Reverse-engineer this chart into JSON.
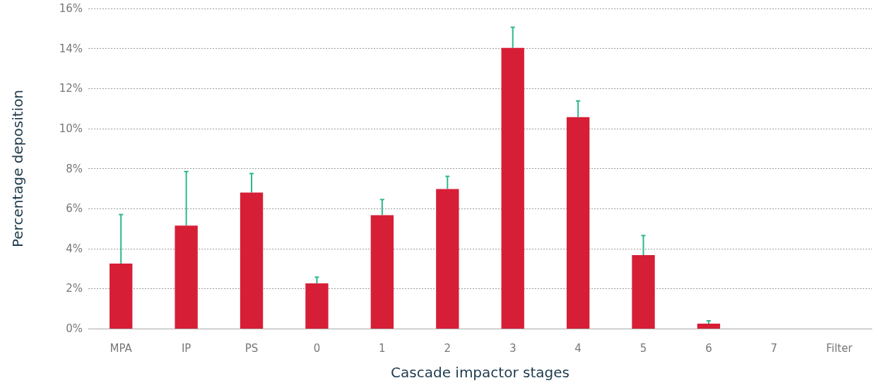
{
  "chart_data": {
    "type": "bar",
    "xlabel": "Cascade impactor stages",
    "ylabel": "Percentage deposition",
    "categories": [
      "MPA",
      "IP",
      "PS",
      "0",
      "1",
      "2",
      "3",
      "4",
      "5",
      "6",
      "7",
      "Filter"
    ],
    "values": [
      3.25,
      5.15,
      6.8,
      2.26,
      5.67,
      6.98,
      14.03,
      10.57,
      3.67,
      0.25,
      0,
      0
    ],
    "color": "#d61f36",
    "errors": [
      [
        3.25,
        5.7
      ],
      [
        5.15,
        7.85
      ],
      [
        6.8,
        7.75
      ],
      [
        2.26,
        2.57
      ],
      [
        5.67,
        6.45
      ],
      [
        6.98,
        7.61
      ],
      [
        14.03,
        15.06
      ],
      [
        10.57,
        11.38
      ],
      [
        3.67,
        4.65
      ],
      [
        0.25,
        0.39
      ],
      null,
      null
    ],
    "ylim": [
      0,
      16
    ],
    "yticks": [
      {
        "value": 0,
        "label": "0%"
      },
      {
        "value": 2,
        "label": "2%"
      },
      {
        "value": 4,
        "label": "4%"
      },
      {
        "value": 6,
        "label": "6%"
      },
      {
        "value": 8,
        "label": "8%"
      },
      {
        "value": 10,
        "label": "10%"
      },
      {
        "value": 12,
        "label": "12%"
      },
      {
        "value": 14,
        "label": "14%"
      },
      {
        "value": 16,
        "label": "16%"
      }
    ],
    "grid": "y"
  }
}
